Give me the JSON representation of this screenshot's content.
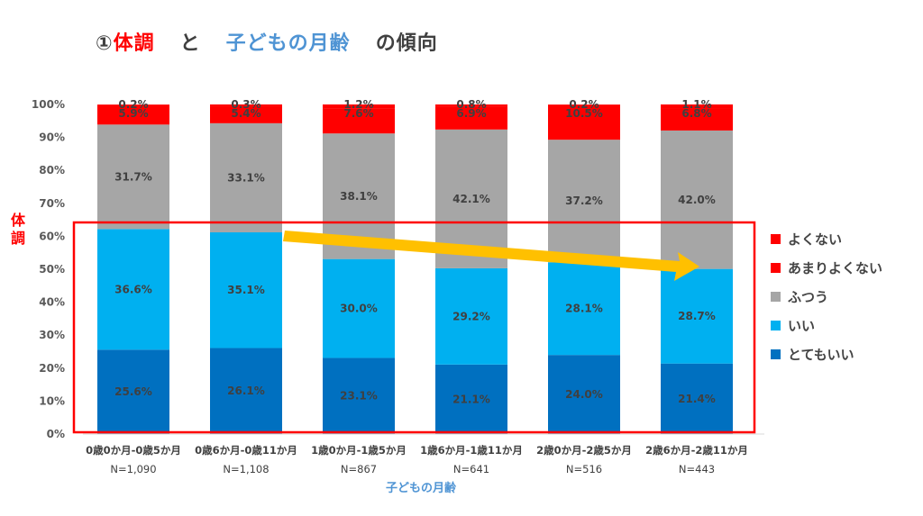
{
  "title": {
    "marker": "①",
    "part1": "体調",
    "part2": "と",
    "part3": "子どもの月齢",
    "part4": "の傾向"
  },
  "colors": {
    "red": "#ff0000",
    "blue_label": "#4f94d4",
    "dark": "#404040",
    "arrow": "#ffc000",
    "highlight_box": "#ff0000"
  },
  "chart_data": {
    "type": "bar",
    "stacked": true,
    "categories": [
      "0歳0か月-0歳5か月",
      "0歳6か月-0歳11か月",
      "1歳0か月-1歳5か月",
      "1歳6か月-1歳11か月",
      "2歳0か月-2歳5か月",
      "2歳6か月-2歳11か月"
    ],
    "n_labels": [
      "N=1,090",
      "N=1,108",
      "N=867",
      "N=641",
      "N=516",
      "N=443"
    ],
    "series": [
      {
        "name": "とてもいい",
        "color": "#0070c0",
        "values": [
          25.6,
          26.1,
          23.1,
          21.1,
          24.0,
          21.4
        ],
        "labels": [
          "25.6%",
          "26.1%",
          "23.1%",
          "21.1%",
          "24.0%",
          "21.4%"
        ]
      },
      {
        "name": "いい",
        "color": "#00b0f0",
        "values": [
          36.6,
          35.1,
          30.0,
          29.2,
          28.1,
          28.7
        ],
        "labels": [
          "36.6%",
          "35.1%",
          "30.0%",
          "29.2%",
          "28.1%",
          "28.7%"
        ]
      },
      {
        "name": "ふつう",
        "color": "#a6a6a6",
        "values": [
          31.7,
          33.1,
          38.1,
          42.1,
          37.2,
          42.0
        ],
        "labels": [
          "31.7%",
          "33.1%",
          "38.1%",
          "42.1%",
          "37.2%",
          "42.0%"
        ]
      },
      {
        "name": "あまりよくない",
        "color": "#ff0000",
        "values": [
          5.9,
          5.4,
          7.6,
          6.9,
          10.5,
          6.8
        ],
        "labels": [
          "5.9%",
          "5.4%",
          "7.6%",
          "6.9%",
          "10.5%",
          "6.8%"
        ]
      },
      {
        "name": "よくない",
        "color": "#ff0000",
        "values": [
          0.2,
          0.3,
          1.2,
          0.8,
          0.2,
          1.1
        ],
        "labels": [
          "0.2%",
          "0.3%",
          "1.2%",
          "0.8%",
          "0.2%",
          "1.1%"
        ]
      }
    ],
    "legend_order": [
      "よくない",
      "あまりよくない",
      "ふつう",
      "いい",
      "とてもいい"
    ],
    "y_ticks": [
      "0%",
      "10%",
      "20%",
      "30%",
      "40%",
      "50%",
      "60%",
      "70%",
      "80%",
      "90%",
      "100%"
    ],
    "ylim": [
      0,
      100
    ],
    "ylabel": "体調",
    "xlabel": "子どもの月齢",
    "grid": false,
    "legend_position": "right"
  }
}
